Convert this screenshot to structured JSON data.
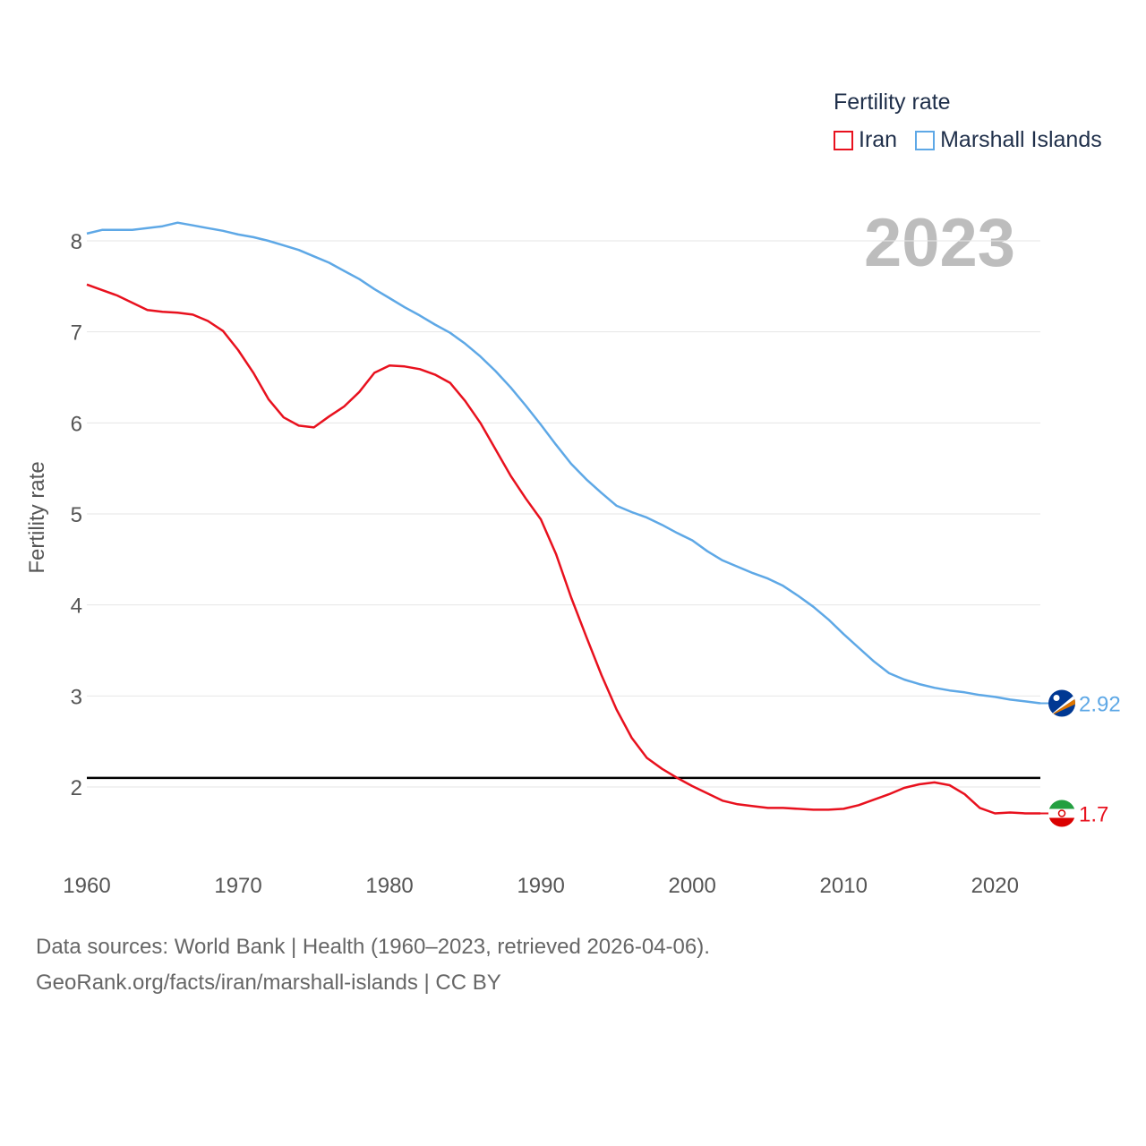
{
  "chart_data": {
    "type": "line",
    "ylabel": "Fertility rate",
    "legend_title": "Fertility rate",
    "legend_position": "top-right",
    "year_label": "2023",
    "x_ticks": [
      1960,
      1970,
      1980,
      1990,
      2000,
      2010,
      2020
    ],
    "y_ticks": [
      2,
      3,
      4,
      5,
      6,
      7,
      8
    ],
    "xlim": [
      1960,
      2023
    ],
    "ylim": [
      1.5,
      8.3
    ],
    "reference_line": 2.1,
    "grid": true,
    "series": [
      {
        "name": "Iran",
        "color": "#e8111e",
        "icon": "iran-flag-icon",
        "end_label": "1.7",
        "x": [
          1960,
          1961,
          1962,
          1963,
          1964,
          1965,
          1966,
          1967,
          1968,
          1969,
          1970,
          1971,
          1972,
          1973,
          1974,
          1975,
          1976,
          1977,
          1978,
          1979,
          1980,
          1981,
          1982,
          1983,
          1984,
          1985,
          1986,
          1987,
          1988,
          1989,
          1990,
          1991,
          1992,
          1993,
          1994,
          1995,
          1996,
          1997,
          1998,
          1999,
          2000,
          2001,
          2002,
          2003,
          2004,
          2005,
          2006,
          2007,
          2008,
          2009,
          2010,
          2011,
          2012,
          2013,
          2014,
          2015,
          2016,
          2017,
          2018,
          2019,
          2020,
          2021,
          2022,
          2023
        ],
        "values": [
          7.52,
          7.46,
          7.4,
          7.32,
          7.24,
          7.22,
          7.21,
          7.19,
          7.12,
          7.01,
          6.8,
          6.55,
          6.26,
          6.06,
          5.97,
          5.95,
          6.07,
          6.18,
          6.34,
          6.55,
          6.63,
          6.62,
          6.59,
          6.53,
          6.44,
          6.24,
          6.0,
          5.71,
          5.42,
          5.17,
          4.94,
          4.56,
          4.08,
          3.65,
          3.23,
          2.85,
          2.54,
          2.32,
          2.2,
          2.1,
          2.01,
          1.93,
          1.85,
          1.81,
          1.79,
          1.77,
          1.77,
          1.76,
          1.75,
          1.75,
          1.76,
          1.8,
          1.86,
          1.92,
          1.99,
          2.03,
          2.05,
          2.02,
          1.92,
          1.77,
          1.71,
          1.72,
          1.71,
          1.71
        ]
      },
      {
        "name": "Marshall Islands",
        "color": "#5ea8e6",
        "icon": "marshall-islands-flag-icon",
        "end_label": "2.92",
        "x": [
          1960,
          1961,
          1962,
          1963,
          1964,
          1965,
          1966,
          1967,
          1968,
          1969,
          1970,
          1971,
          1972,
          1973,
          1974,
          1975,
          1976,
          1977,
          1978,
          1979,
          1980,
          1981,
          1982,
          1983,
          1984,
          1985,
          1986,
          1987,
          1988,
          1989,
          1990,
          1991,
          1992,
          1993,
          1994,
          1995,
          1996,
          1997,
          1998,
          1999,
          2000,
          2001,
          2002,
          2003,
          2004,
          2005,
          2006,
          2007,
          2008,
          2009,
          2010,
          2011,
          2012,
          2013,
          2014,
          2015,
          2016,
          2017,
          2018,
          2019,
          2020,
          2021,
          2022,
          2023
        ],
        "values": [
          8.08,
          8.12,
          8.12,
          8.12,
          8.14,
          8.16,
          8.2,
          8.17,
          8.14,
          8.11,
          8.07,
          8.04,
          8.0,
          7.95,
          7.9,
          7.83,
          7.76,
          7.67,
          7.58,
          7.47,
          7.37,
          7.27,
          7.18,
          7.08,
          6.99,
          6.87,
          6.73,
          6.57,
          6.39,
          6.19,
          5.98,
          5.76,
          5.55,
          5.38,
          5.23,
          5.09,
          5.02,
          4.96,
          4.88,
          4.79,
          4.71,
          4.59,
          4.49,
          4.42,
          4.35,
          4.29,
          4.21,
          4.1,
          3.98,
          3.84,
          3.68,
          3.53,
          3.38,
          3.25,
          3.18,
          3.13,
          3.09,
          3.06,
          3.04,
          3.01,
          2.99,
          2.96,
          2.94,
          2.92
        ]
      }
    ]
  },
  "footer": {
    "line1": "Data sources: World Bank | Health (1960–2023, retrieved 2026-04-06).",
    "line2": "GeoRank.org/facts/iran/marshall-islands | CC BY"
  }
}
